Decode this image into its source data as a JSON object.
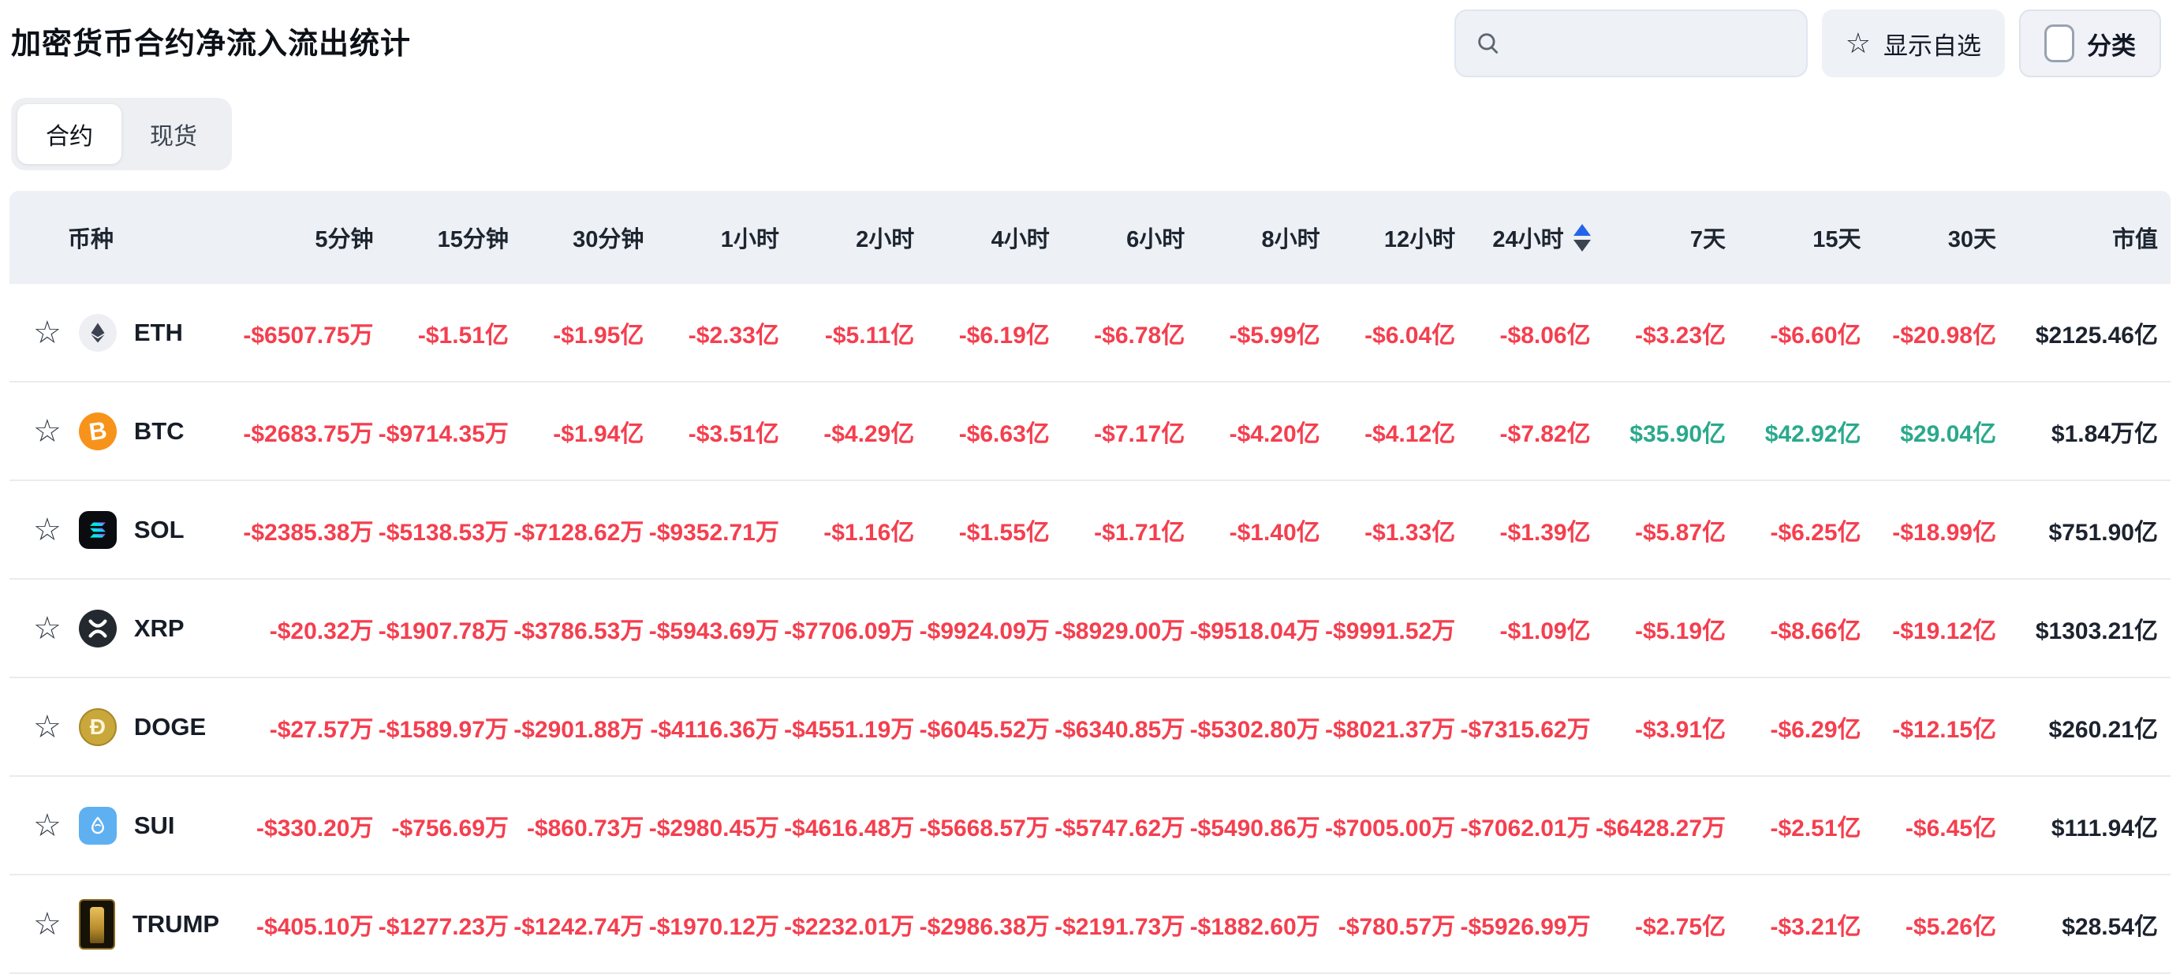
{
  "page": {
    "title": "加密货币合约净流入流出统计"
  },
  "controls": {
    "search": {
      "value": "",
      "icon": "search-icon"
    },
    "show_favorites_label": "显示自选",
    "favorites_icon": "star-icon",
    "category_label": "分类",
    "category_checkbox_checked": false
  },
  "tabs": [
    {
      "label": "合约",
      "active": true
    },
    {
      "label": "现货",
      "active": false
    }
  ],
  "table": {
    "columns": [
      "币种",
      "5分钟",
      "15分钟",
      "30分钟",
      "1小时",
      "2小时",
      "4小时",
      "6小时",
      "8小时",
      "12小时",
      "24小时",
      "7天",
      "15天",
      "30天",
      "市值"
    ],
    "sort": {
      "column": "24小时",
      "direction": "asc",
      "asc_arrow_color": "#2563eb",
      "desc_arrow_color": "#3a4350"
    },
    "colors": {
      "negative": "#f43f4f",
      "positive": "#2aa98c",
      "market_cap": "#1c232e"
    },
    "rows": [
      {
        "symbol": "ETH",
        "icon": "eth-icon",
        "values": [
          "-$6507.75万",
          "-$1.51亿",
          "-$1.95亿",
          "-$2.33亿",
          "-$5.11亿",
          "-$6.19亿",
          "-$6.78亿",
          "-$5.99亿",
          "-$6.04亿",
          "-$8.06亿",
          "-$3.23亿",
          "-$6.60亿",
          "-$20.98亿",
          "$2125.46亿"
        ]
      },
      {
        "symbol": "BTC",
        "icon": "btc-icon",
        "values": [
          "-$2683.75万",
          "-$9714.35万",
          "-$1.94亿",
          "-$3.51亿",
          "-$4.29亿",
          "-$6.63亿",
          "-$7.17亿",
          "-$4.20亿",
          "-$4.12亿",
          "-$7.82亿",
          "$35.90亿",
          "$42.92亿",
          "$29.04亿",
          "$1.84万亿"
        ]
      },
      {
        "symbol": "SOL",
        "icon": "sol-icon",
        "values": [
          "-$2385.38万",
          "-$5138.53万",
          "-$7128.62万",
          "-$9352.71万",
          "-$1.16亿",
          "-$1.55亿",
          "-$1.71亿",
          "-$1.40亿",
          "-$1.33亿",
          "-$1.39亿",
          "-$5.87亿",
          "-$6.25亿",
          "-$18.99亿",
          "$751.90亿"
        ]
      },
      {
        "symbol": "XRP",
        "icon": "xrp-icon",
        "values": [
          "-$20.32万",
          "-$1907.78万",
          "-$3786.53万",
          "-$5943.69万",
          "-$7706.09万",
          "-$9924.09万",
          "-$8929.00万",
          "-$9518.04万",
          "-$9991.52万",
          "-$1.09亿",
          "-$5.19亿",
          "-$8.66亿",
          "-$19.12亿",
          "$1303.21亿"
        ]
      },
      {
        "symbol": "DOGE",
        "icon": "doge-icon",
        "values": [
          "-$27.57万",
          "-$1589.97万",
          "-$2901.88万",
          "-$4116.36万",
          "-$4551.19万",
          "-$6045.52万",
          "-$6340.85万",
          "-$5302.80万",
          "-$8021.37万",
          "-$7315.62万",
          "-$3.91亿",
          "-$6.29亿",
          "-$12.15亿",
          "$260.21亿"
        ]
      },
      {
        "symbol": "SUI",
        "icon": "sui-icon",
        "values": [
          "-$330.20万",
          "-$756.69万",
          "-$860.73万",
          "-$2980.45万",
          "-$4616.48万",
          "-$5668.57万",
          "-$5747.62万",
          "-$5490.86万",
          "-$7005.00万",
          "-$7062.01万",
          "-$6428.27万",
          "-$2.51亿",
          "-$6.45亿",
          "$111.94亿"
        ]
      },
      {
        "symbol": "TRUMP",
        "icon": "trump-icon",
        "values": [
          "-$405.10万",
          "-$1277.23万",
          "-$1242.74万",
          "-$1970.12万",
          "-$2232.01万",
          "-$2986.38万",
          "-$2191.73万",
          "-$1882.60万",
          "-$780.57万",
          "-$5926.99万",
          "-$2.75亿",
          "-$3.21亿",
          "-$5.26亿",
          "$28.54亿"
        ]
      }
    ]
  }
}
